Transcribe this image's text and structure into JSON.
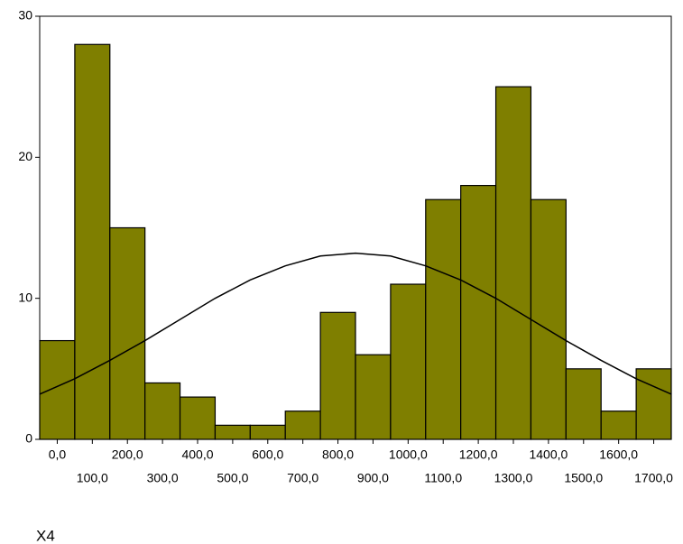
{
  "chart_data": {
    "type": "histogram",
    "x_label": "X4",
    "bins": [
      -50,
      50,
      150,
      250,
      350,
      450,
      550,
      650,
      750,
      850,
      950,
      1050,
      1150,
      1250,
      1350,
      1450,
      1550,
      1650,
      1750
    ],
    "values": [
      7,
      28,
      15,
      4,
      3,
      1,
      1,
      2,
      9,
      6,
      11,
      17,
      18,
      25,
      17,
      5,
      2,
      5
    ],
    "color": "#7f7f00",
    "curve": {
      "type": "line",
      "color": "#000000",
      "x": [
        -50,
        50,
        150,
        250,
        350,
        450,
        550,
        650,
        750,
        850,
        950,
        1050,
        1150,
        1250,
        1350,
        1450,
        1550,
        1650,
        1750
      ],
      "values": [
        3.2,
        4.3,
        5.6,
        7.0,
        8.5,
        10.0,
        11.3,
        12.3,
        13.0,
        13.2,
        13.0,
        12.3,
        11.3,
        10.0,
        8.5,
        7.0,
        5.6,
        4.3,
        3.2
      ]
    },
    "xlim": [
      -50,
      1750
    ],
    "xticks": [
      {
        "value": 0,
        "label": "0,0"
      },
      {
        "value": 100,
        "label": "100,0"
      },
      {
        "value": 200,
        "label": "200,0"
      },
      {
        "value": 300,
        "label": "300,0"
      },
      {
        "value": 400,
        "label": "400,0"
      },
      {
        "value": 500,
        "label": "500,0"
      },
      {
        "value": 600,
        "label": "600,0"
      },
      {
        "value": 700,
        "label": "700,0"
      },
      {
        "value": 800,
        "label": "800,0"
      },
      {
        "value": 900,
        "label": "900,0"
      },
      {
        "value": 1000,
        "label": "1000,0"
      },
      {
        "value": 1100,
        "label": "1100,0"
      },
      {
        "value": 1200,
        "label": "1200,0"
      },
      {
        "value": 1300,
        "label": "1300,0"
      },
      {
        "value": 1400,
        "label": "1400,0"
      },
      {
        "value": 1500,
        "label": "1500,0"
      },
      {
        "value": 1600,
        "label": "1600,0"
      },
      {
        "value": 1700,
        "label": "1700,0"
      }
    ],
    "ylim": [
      0,
      30
    ],
    "yticks": [
      0,
      10,
      20,
      30
    ]
  }
}
